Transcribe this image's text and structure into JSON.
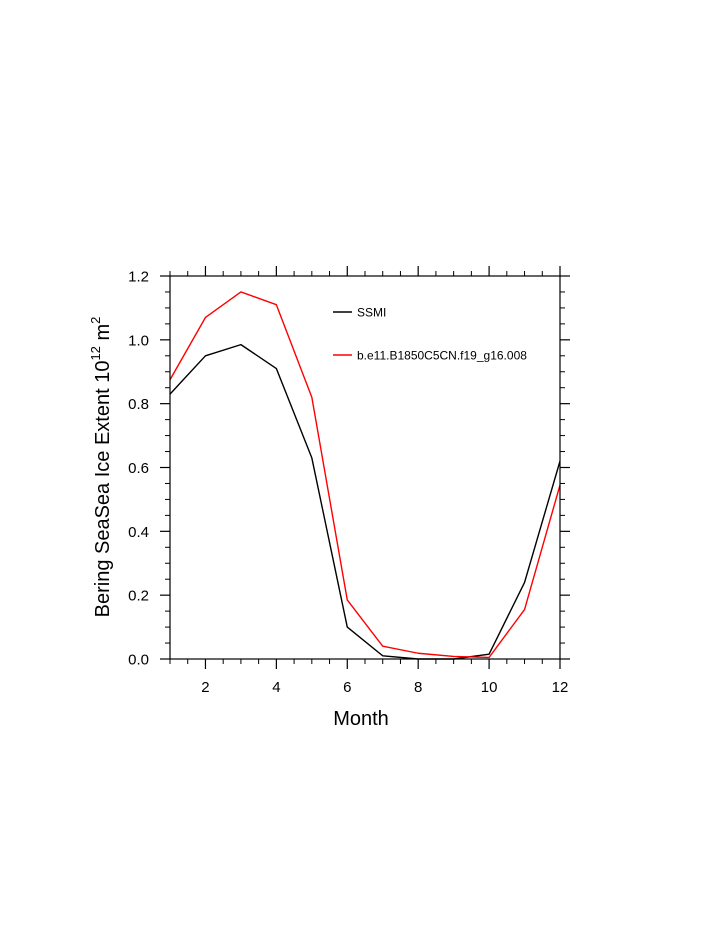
{
  "chart_data": {
    "type": "line",
    "xlabel": "Month",
    "ylabel_main": "Bering SeaSea Ice Extent 10",
    "ylabel_sup": "12",
    "ylabel_tail": " m",
    "ylabel_sup2": "2",
    "xlim": [
      1,
      12
    ],
    "ylim": [
      0,
      1.2
    ],
    "xticks": [
      2,
      4,
      6,
      8,
      10,
      12
    ],
    "yticks": [
      0.0,
      0.2,
      0.4,
      0.6,
      0.8,
      1.0,
      1.2
    ],
    "ytick_labels": [
      "0.0",
      "0.2",
      "0.4",
      "0.6",
      "0.8",
      "1.0",
      "1.2"
    ],
    "legend_position": "top-right",
    "x": [
      1,
      2,
      3,
      4,
      5,
      6,
      7,
      8,
      9,
      10,
      11,
      12
    ],
    "series": [
      {
        "name": "SSMI",
        "color": "#000000",
        "values": [
          0.83,
          0.95,
          0.985,
          0.91,
          0.63,
          0.1,
          0.01,
          0.0,
          0.0,
          0.015,
          0.24,
          0.62
        ]
      },
      {
        "name": "b.e11.B1850C5CN.f19_g16.008",
        "color": "#ff0000",
        "values": [
          0.875,
          1.07,
          1.15,
          1.11,
          0.82,
          0.185,
          0.04,
          0.018,
          0.008,
          0.005,
          0.155,
          0.545
        ]
      }
    ]
  }
}
